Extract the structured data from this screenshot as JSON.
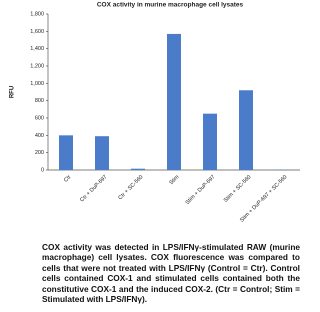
{
  "chart_data": {
    "type": "bar",
    "title": "COX activity in murine macrophage cell lysates",
    "ylabel": "RFU",
    "categories": [
      "Ctr",
      "Ctr + DuP-697",
      "Ctr + SC-560",
      "Stim",
      "Stim + DuP-697",
      "Stim + SC-560",
      "Stim + DuP-697 + SC-560"
    ],
    "values": [
      400,
      390,
      15,
      1570,
      650,
      920,
      5
    ],
    "color": "#4a7cc9",
    "ylim": [
      0,
      1800
    ],
    "yticks": [
      0,
      200,
      400,
      600,
      800,
      {
        "value": 1000,
        "label": "1,000"
      },
      {
        "value": 1200,
        "label": "1,200"
      },
      {
        "value": 1400,
        "label": "1,400"
      },
      {
        "value": 1600,
        "label": "1,600"
      },
      {
        "value": 1800,
        "label": "1,800"
      }
    ],
    "grid": false
  },
  "caption": "COX activity was detected in LPS/IFNγ-stimulated RAW (murine macrophage) cell lysates. COX fluorescence was compared to cells that were not treated with LPS/IFNγ (Control = Ctr). Control cells contained COX-1 and stimulated cells contained both the constitutive COX-1 and the induced COX-2. (Ctr = Control; Stim = Stimulated with LPS/IFNγ)."
}
